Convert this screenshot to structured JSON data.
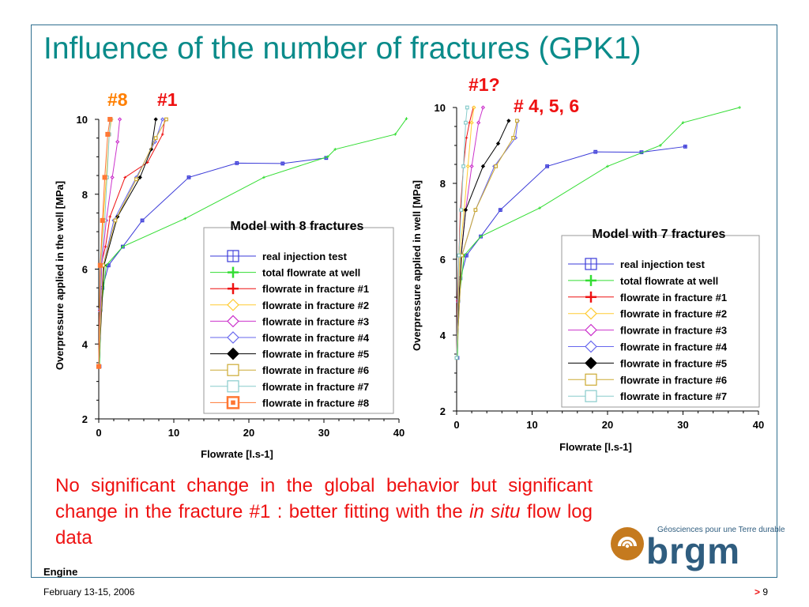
{
  "slide": {
    "title": "Influence of the number of fractures (GPK1)",
    "annotations": [
      {
        "text": "#8",
        "color": "#ff7f00"
      },
      {
        "text": "#1",
        "color": "#ee1111"
      },
      {
        "text": "#1?",
        "color": "#ee1111"
      },
      {
        "text": "# 4, 5, 6",
        "color": "#ee1111"
      }
    ],
    "body_part1": "No significant change in the global behavior but significant change in the fracture #1 : better fitting with the ",
    "body_italic": "in situ",
    "body_part2": " flow log data",
    "footer_left": "Engine",
    "footer_date": "February 13-15, 2006",
    "footer_page_marker": ">",
    "footer_page": "9",
    "logo_tagline": "Géosciences pour une Terre durable",
    "logo_word": "brgm"
  },
  "chart_data": [
    {
      "type": "line",
      "legend_title": "Model with 8 fractures",
      "xlabel": "Flowrate [l.s-1]",
      "ylabel": "Overpressure applied in the well [MPa]",
      "xlim": [
        0,
        40
      ],
      "ylim": [
        2,
        10
      ],
      "xticks": [
        0,
        10,
        20,
        30,
        40
      ],
      "yticks": [
        2,
        4,
        6,
        8,
        10
      ],
      "series": [
        {
          "name": "real injection test",
          "color": "#3a3ad8",
          "marker": "square-cross",
          "points": [
            [
              0.1,
              3.4
            ],
            [
              0.2,
              4.9
            ],
            [
              0.5,
              5.5
            ],
            [
              1.3,
              6.1
            ],
            [
              3.2,
              6.6
            ],
            [
              5.8,
              7.3
            ],
            [
              12,
              8.45
            ],
            [
              18.4,
              8.83
            ],
            [
              24.5,
              8.82
            ],
            [
              30.3,
              8.97
            ]
          ]
        },
        {
          "name": "total flowrate at well",
          "color": "#33dd33",
          "marker": "plus",
          "points": [
            [
              0.1,
              3.4
            ],
            [
              0.3,
              4.9
            ],
            [
              1.0,
              6.1
            ],
            [
              3.2,
              6.6
            ],
            [
              11.5,
              7.35
            ],
            [
              22,
              8.45
            ],
            [
              30.5,
              9.0
            ],
            [
              31.5,
              9.2
            ],
            [
              39.5,
              9.6
            ],
            [
              41,
              10.02
            ]
          ]
        },
        {
          "name": "flowrate in fracture #1",
          "color": "#ee1111",
          "marker": "plus",
          "points": [
            [
              0,
              3.4
            ],
            [
              0.1,
              4.9
            ],
            [
              0.3,
              6.1
            ],
            [
              0.9,
              6.6
            ],
            [
              1.5,
              7.4
            ],
            [
              3.5,
              8.45
            ],
            [
              6.5,
              8.85
            ],
            [
              8.5,
              9.6
            ],
            [
              8.8,
              10.0
            ]
          ]
        },
        {
          "name": "flowrate in fracture #2",
          "color": "#ffcc33",
          "marker": "diamond",
          "points": [
            [
              0,
              3.4
            ],
            [
              0.2,
              6.1
            ],
            [
              0.6,
              7.3
            ],
            [
              1.0,
              8.45
            ],
            [
              1.4,
              9.6
            ],
            [
              1.7,
              10.0
            ]
          ]
        },
        {
          "name": "flowrate in fracture #3",
          "color": "#cc33cc",
          "marker": "diamond",
          "points": [
            [
              0,
              3.4
            ],
            [
              0.4,
              6.1
            ],
            [
              1.0,
              7.3
            ],
            [
              1.8,
              8.45
            ],
            [
              2.5,
              9.4
            ],
            [
              2.8,
              10.0
            ]
          ]
        },
        {
          "name": "flowrate in fracture #4",
          "color": "#6666ee",
          "marker": "diamond",
          "points": [
            [
              0,
              3.4
            ],
            [
              0.6,
              6.1
            ],
            [
              2.0,
              7.3
            ],
            [
              5.0,
              8.45
            ],
            [
              7.5,
              9.4
            ],
            [
              8.5,
              10.0
            ]
          ]
        },
        {
          "name": "flowrate in fracture #5",
          "color": "#000000",
          "marker": "diamond-filled",
          "points": [
            [
              0,
              3.4
            ],
            [
              0.7,
              6.1
            ],
            [
              2.5,
              7.4
            ],
            [
              5.5,
              8.45
            ],
            [
              7,
              9.2
            ],
            [
              7.6,
              10.0
            ]
          ]
        },
        {
          "name": "flowrate in fracture #6",
          "color": "#ccaa33",
          "marker": "square",
          "points": [
            [
              0,
              3.4
            ],
            [
              0.6,
              6.1
            ],
            [
              2.2,
              7.3
            ],
            [
              5.0,
              8.4
            ],
            [
              7.6,
              9.5
            ],
            [
              9.0,
              10.0
            ]
          ]
        },
        {
          "name": "flowrate in fracture #7",
          "color": "#88cccc",
          "marker": "square",
          "points": [
            [
              0,
              3.4
            ],
            [
              0.3,
              6.1
            ],
            [
              0.8,
              7.3
            ],
            [
              1.1,
              8.45
            ],
            [
              1.4,
              9.6
            ],
            [
              1.6,
              10.0
            ]
          ]
        },
        {
          "name": "flowrate in fracture #8",
          "color": "#ff7733",
          "marker": "square-dot",
          "points": [
            [
              0,
              3.4
            ],
            [
              0.2,
              6.1
            ],
            [
              0.5,
              7.3
            ],
            [
              0.8,
              8.45
            ],
            [
              1.2,
              9.6
            ],
            [
              1.5,
              10.0
            ]
          ]
        }
      ]
    },
    {
      "type": "line",
      "legend_title": "Model with 7 fractures",
      "xlabel": "Flowrate [l.s-1]",
      "ylabel": "Overpressure applied in well [MPa]",
      "xlim": [
        0,
        40
      ],
      "ylim": [
        2,
        10
      ],
      "xticks": [
        0,
        10,
        20,
        30,
        40
      ],
      "yticks": [
        2,
        4,
        6,
        8,
        10
      ],
      "series": [
        {
          "name": "real injection test",
          "color": "#3a3ad8",
          "marker": "square-cross",
          "points": [
            [
              0.1,
              3.4
            ],
            [
              0.2,
              4.9
            ],
            [
              0.5,
              5.5
            ],
            [
              1.3,
              6.1
            ],
            [
              3.2,
              6.6
            ],
            [
              5.8,
              7.3
            ],
            [
              12,
              8.45
            ],
            [
              18.4,
              8.83
            ],
            [
              24.5,
              8.82
            ],
            [
              30.3,
              8.97
            ]
          ]
        },
        {
          "name": "total flowrate at well",
          "color": "#33dd33",
          "marker": "plus",
          "points": [
            [
              0.1,
              3.4
            ],
            [
              0.3,
              4.9
            ],
            [
              1.0,
              6.1
            ],
            [
              3.2,
              6.6
            ],
            [
              11,
              7.35
            ],
            [
              20,
              8.45
            ],
            [
              27,
              9.0
            ],
            [
              30,
              9.6
            ],
            [
              37.5,
              10.0
            ]
          ]
        },
        {
          "name": "flowrate in fracture #1",
          "color": "#ee1111",
          "marker": "plus",
          "points": [
            [
              0,
              3.4
            ],
            [
              0.1,
              4.9
            ],
            [
              0.3,
              6.1
            ],
            [
              0.5,
              7.3
            ],
            [
              0.9,
              8.45
            ],
            [
              1.3,
              9.2
            ],
            [
              1.7,
              9.6
            ],
            [
              2.2,
              10.0
            ]
          ]
        },
        {
          "name": "flowrate in  fracture #2",
          "color": "#ffcc33",
          "marker": "diamond",
          "points": [
            [
              0,
              3.4
            ],
            [
              0.4,
              6.1
            ],
            [
              1.0,
              7.3
            ],
            [
              1.5,
              8.45
            ],
            [
              2.0,
              9.6
            ],
            [
              2.3,
              10.0
            ]
          ]
        },
        {
          "name": "flowrate in  fracture #3",
          "color": "#cc33cc",
          "marker": "diamond",
          "points": [
            [
              0,
              3.4
            ],
            [
              0.6,
              6.1
            ],
            [
              1.2,
              7.3
            ],
            [
              2.0,
              8.45
            ],
            [
              2.9,
              9.6
            ],
            [
              3.5,
              10.0
            ]
          ]
        },
        {
          "name": "flowrate in  fracture #4",
          "color": "#6666ee",
          "marker": "diamond",
          "points": [
            [
              0,
              3.4
            ],
            [
              0.7,
              6.1
            ],
            [
              2.5,
              7.3
            ],
            [
              5.0,
              8.45
            ],
            [
              7.8,
              9.2
            ],
            [
              8.1,
              9.65
            ]
          ]
        },
        {
          "name": "flowrate in  fracture #5",
          "color": "#000000",
          "marker": "diamond-filled",
          "points": [
            [
              0,
              3.4
            ],
            [
              0.6,
              6.1
            ],
            [
              1.2,
              7.3
            ],
            [
              3.5,
              8.45
            ],
            [
              5.5,
              9.05
            ],
            [
              6.9,
              9.65
            ]
          ]
        },
        {
          "name": "flowrate in  fracture #6",
          "color": "#ccaa33",
          "marker": "square",
          "points": [
            [
              0,
              3.4
            ],
            [
              0.7,
              6.1
            ],
            [
              2.5,
              7.3
            ],
            [
              5.2,
              8.45
            ],
            [
              7.5,
              9.2
            ],
            [
              8.0,
              9.65
            ]
          ]
        },
        {
          "name": "flowrate in  fracture #7",
          "color": "#88cccc",
          "marker": "square",
          "points": [
            [
              0,
              3.4
            ],
            [
              0.3,
              6.1
            ],
            [
              0.6,
              7.3
            ],
            [
              0.9,
              8.45
            ],
            [
              1.2,
              9.6
            ],
            [
              1.4,
              10.0
            ]
          ]
        }
      ]
    }
  ]
}
